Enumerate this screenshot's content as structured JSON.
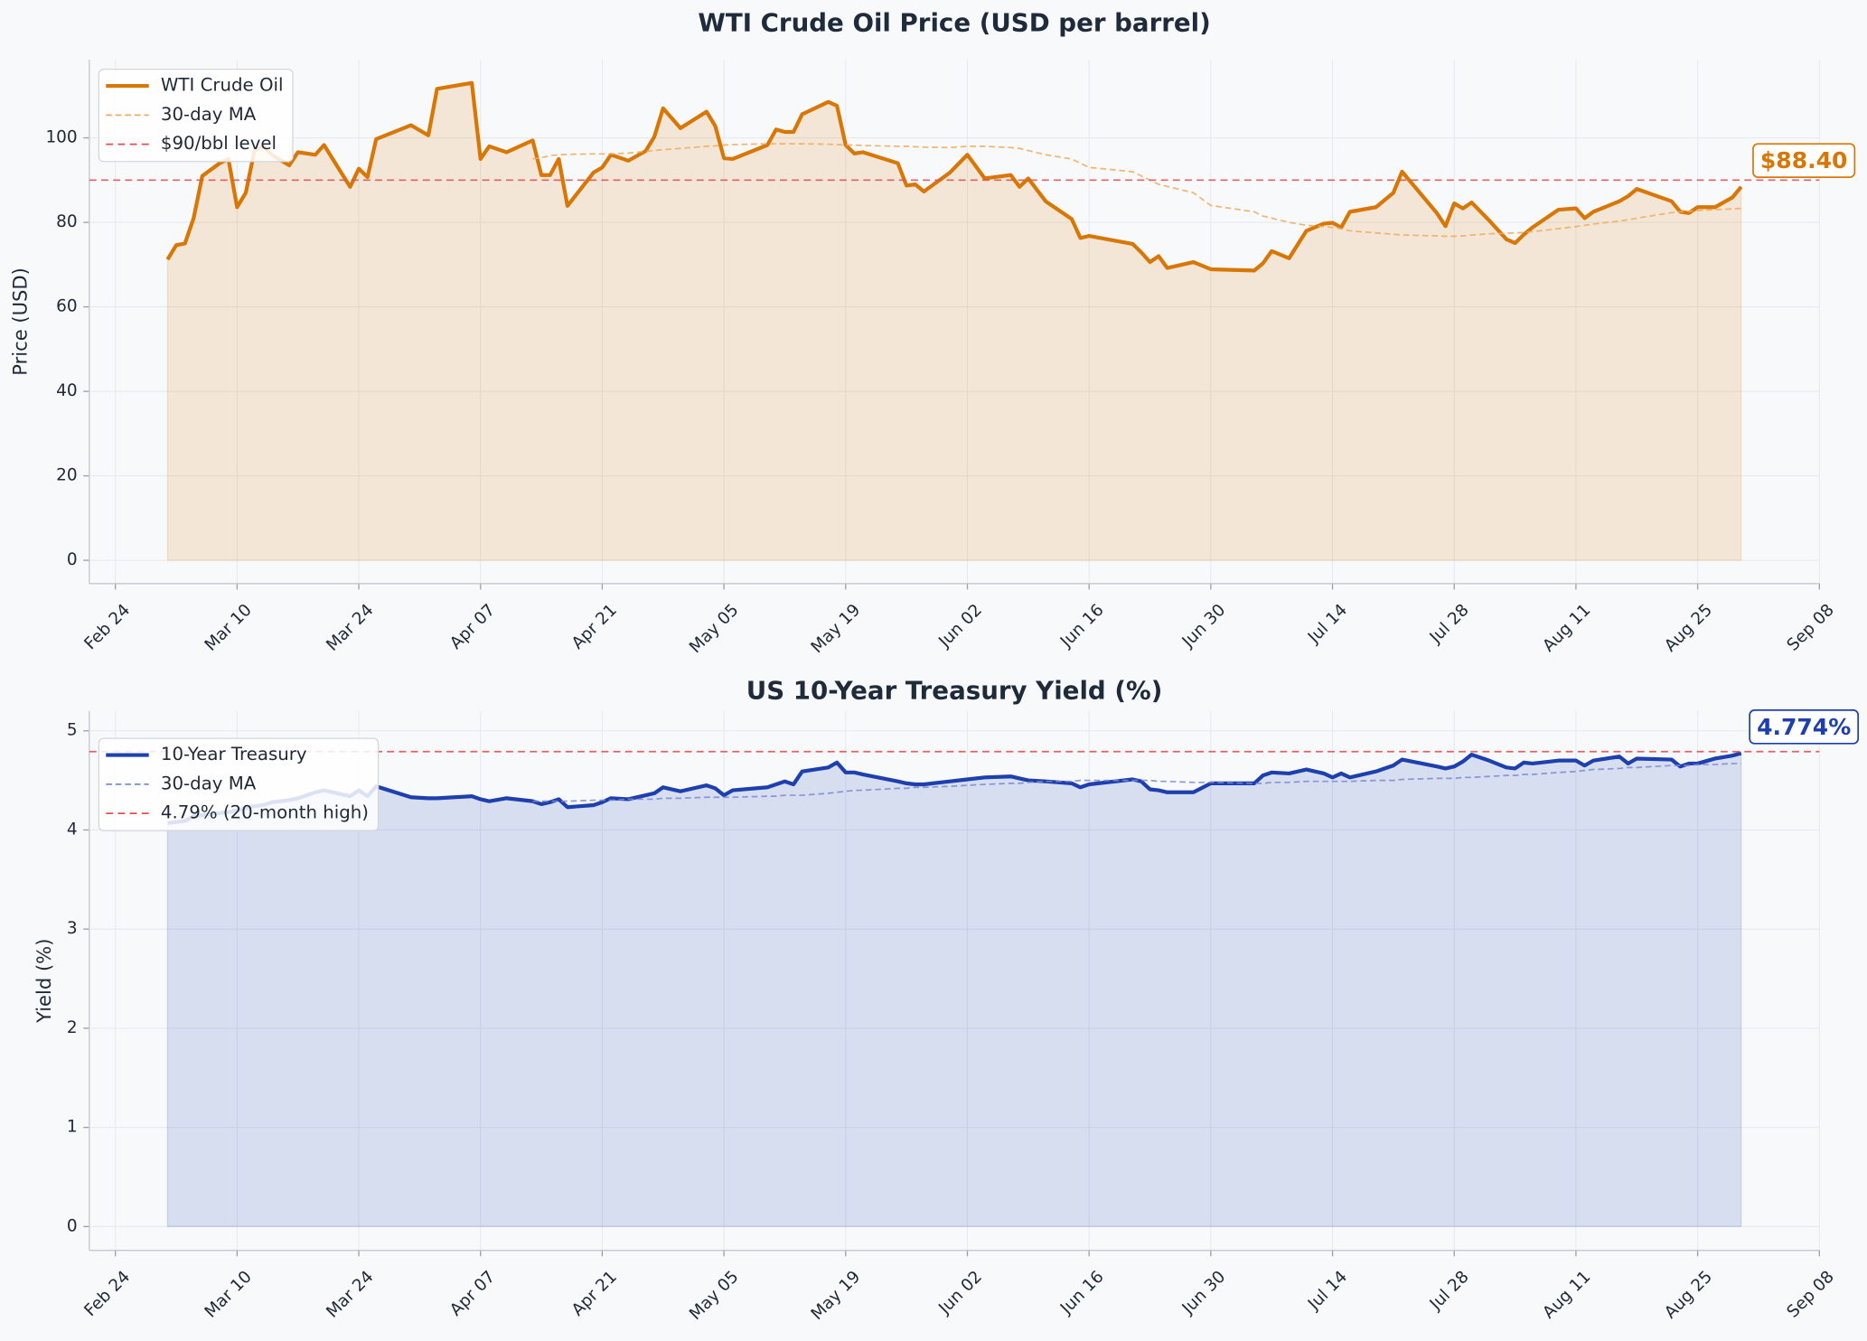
{
  "chart_data": [
    {
      "type": "line",
      "title": "WTI Crude Oil Price (USD per barrel)",
      "ylabel": "Price (USD)",
      "x": [
        "Mar 02",
        "Mar 03",
        "Mar 04",
        "Mar 05",
        "Mar 06",
        "Mar 08",
        "Mar 09",
        "Mar 10",
        "Mar 11",
        "Mar 12",
        "Mar 13",
        "Mar 14",
        "Mar 16",
        "Mar 17",
        "Mar 19",
        "Mar 20",
        "Mar 23",
        "Mar 24",
        "Mar 25",
        "Mar 26",
        "Mar 30",
        "Apr 01",
        "Apr 02",
        "Apr 06",
        "Apr 07",
        "Apr 08",
        "Apr 10",
        "Apr 13",
        "Apr 14",
        "Apr 15",
        "Apr 16",
        "Apr 17",
        "Apr 20",
        "Apr 21",
        "Apr 22",
        "Apr 24",
        "Apr 26",
        "Apr 27",
        "Apr 28",
        "Apr 30",
        "May 03",
        "May 04",
        "May 05",
        "May 06",
        "May 10",
        "May 11",
        "May 12",
        "May 13",
        "May 14",
        "May 17",
        "May 18",
        "May 19",
        "May 20",
        "May 21",
        "May 25",
        "May 26",
        "May 27",
        "May 28",
        "May 31",
        "Jun 02",
        "Jun 04",
        "Jun 07",
        "Jun 08",
        "Jun 09",
        "Jun 11",
        "Jun 14",
        "Jun 15",
        "Jun 16",
        "Jun 21",
        "Jun 22",
        "Jun 23",
        "Jun 24",
        "Jun 25",
        "Jun 28",
        "Jun 30",
        "Jul 05",
        "Jul 06",
        "Jul 07",
        "Jul 09",
        "Jul 11",
        "Jul 13",
        "Jul 14",
        "Jul 15",
        "Jul 16",
        "Jul 19",
        "Jul 21",
        "Jul 22",
        "Jul 26",
        "Jul 27",
        "Jul 28",
        "Jul 29",
        "Jul 30",
        "Aug 01",
        "Aug 03",
        "Aug 04",
        "Aug 05",
        "Aug 06",
        "Aug 09",
        "Aug 11",
        "Aug 12",
        "Aug 13",
        "Aug 16",
        "Aug 17",
        "Aug 18",
        "Aug 22",
        "Aug 23",
        "Aug 24",
        "Aug 25",
        "Aug 27",
        "Aug 29",
        "Aug 30"
      ],
      "series": [
        {
          "name": "WTI Crude Oil",
          "color": "#d97706",
          "fill": true,
          "values": [
            71.2,
            74.6,
            75.0,
            81.0,
            91.0,
            94.0,
            95.0,
            83.6,
            87.0,
            97.0,
            98.0,
            96.0,
            93.5,
            96.6,
            96.0,
            98.3,
            88.4,
            92.7,
            90.7,
            99.7,
            103.0,
            100.6,
            111.6,
            113.0,
            95.0,
            98.0,
            96.6,
            99.4,
            91.2,
            91.2,
            95.0,
            83.9,
            91.8,
            93.0,
            96.0,
            94.6,
            96.9,
            100.3,
            107.0,
            102.3,
            106.2,
            102.8,
            95.2,
            95.0,
            98.3,
            102.0,
            101.4,
            101.4,
            105.6,
            108.5,
            107.6,
            98.3,
            96.3,
            96.6,
            94.0,
            88.7,
            89.0,
            87.3,
            91.8,
            96.0,
            90.4,
            91.2,
            88.4,
            90.4,
            85.0,
            80.8,
            76.3,
            76.8,
            74.9,
            72.9,
            70.6,
            72.0,
            69.2,
            70.6,
            68.9,
            68.6,
            70.3,
            73.2,
            71.5,
            78.0,
            79.7,
            79.9,
            78.8,
            82.5,
            83.6,
            87.0,
            92.0,
            82.2,
            79.1,
            84.5,
            83.3,
            84.7,
            80.5,
            76.0,
            75.1,
            77.1,
            78.8,
            83.0,
            83.3,
            81.0,
            82.5,
            85.0,
            86.2,
            87.9,
            85.0,
            82.5,
            82.2,
            83.6,
            83.6,
            85.9,
            88.4
          ]
        },
        {
          "name": "30-day MA",
          "color": "#f0a95a",
          "dashed": true,
          "values": [
            null,
            null,
            null,
            null,
            null,
            null,
            null,
            null,
            null,
            null,
            null,
            null,
            null,
            null,
            null,
            null,
            null,
            null,
            null,
            null,
            null,
            null,
            null,
            null,
            null,
            null,
            null,
            95.0,
            95.3,
            95.8,
            96.0,
            96.1,
            96.2,
            96.2,
            96.2,
            96.4,
            96.8,
            97.0,
            97.2,
            97.5,
            98.0,
            98.1,
            98.3,
            98.4,
            98.6,
            98.6,
            98.6,
            98.6,
            98.6,
            98.5,
            98.4,
            98.3,
            98.3,
            98.2,
            98.0,
            98.0,
            97.9,
            97.8,
            97.7,
            98.0,
            98.0,
            97.7,
            97.5,
            97.0,
            96.0,
            95.0,
            94.0,
            93.0,
            92.0,
            91.0,
            90.0,
            89.0,
            88.5,
            87.0,
            84.0,
            82.5,
            81.5,
            81.0,
            80.0,
            79.3,
            79.0,
            78.8,
            78.5,
            78.0,
            77.5,
            77.2,
            77.0,
            76.8,
            76.7,
            76.7,
            76.8,
            77.0,
            77.3,
            77.4,
            77.5,
            77.6,
            77.8,
            78.5,
            79.0,
            79.3,
            79.6,
            80.3,
            80.6,
            81.0,
            82.3,
            82.5,
            82.6,
            82.8,
            83.0,
            83.2,
            83.3
          ]
        }
      ],
      "hlines": [
        {
          "name": "$90/bbl level",
          "value": 90,
          "color": "#e05252"
        }
      ],
      "end_label": {
        "value": 88.4,
        "label": "$88.40"
      },
      "xlim": [
        "Feb 21",
        "Sep 08"
      ],
      "xticks": [
        "Feb 24",
        "Mar 10",
        "Mar 24",
        "Apr 07",
        "Apr 21",
        "May 05",
        "May 19",
        "Jun 02",
        "Jun 16",
        "Jun 30",
        "Jul 14",
        "Jul 28",
        "Aug 11",
        "Aug 25",
        "Sep 08"
      ],
      "ylim": [
        -5.5,
        118.5
      ],
      "yticks": [
        0,
        20,
        40,
        60,
        80,
        100
      ],
      "grid": true,
      "legend": "upper-left"
    },
    {
      "type": "line",
      "title": "US 10-Year Treasury Yield (%)",
      "ylabel": "Yield (%)",
      "x": [
        "Mar 02",
        "Mar 03",
        "Mar 04",
        "Mar 05",
        "Mar 06",
        "Mar 08",
        "Mar 09",
        "Mar 10",
        "Mar 11",
        "Mar 12",
        "Mar 13",
        "Mar 14",
        "Mar 16",
        "Mar 17",
        "Mar 19",
        "Mar 20",
        "Mar 23",
        "Mar 24",
        "Mar 25",
        "Mar 26",
        "Mar 30",
        "Apr 01",
        "Apr 02",
        "Apr 06",
        "Apr 07",
        "Apr 08",
        "Apr 10",
        "Apr 13",
        "Apr 14",
        "Apr 15",
        "Apr 16",
        "Apr 17",
        "Apr 20",
        "Apr 21",
        "Apr 22",
        "Apr 24",
        "Apr 26",
        "Apr 27",
        "Apr 28",
        "Apr 30",
        "May 03",
        "May 04",
        "May 05",
        "May 06",
        "May 10",
        "May 11",
        "May 12",
        "May 13",
        "May 14",
        "May 17",
        "May 18",
        "May 19",
        "May 20",
        "May 21",
        "May 25",
        "May 26",
        "May 27",
        "May 28",
        "May 31",
        "Jun 02",
        "Jun 04",
        "Jun 07",
        "Jun 08",
        "Jun 09",
        "Jun 11",
        "Jun 14",
        "Jun 15",
        "Jun 16",
        "Jun 21",
        "Jun 22",
        "Jun 23",
        "Jun 24",
        "Jun 25",
        "Jun 28",
        "Jun 30",
        "Jul 05",
        "Jul 06",
        "Jul 07",
        "Jul 09",
        "Jul 11",
        "Jul 13",
        "Jul 14",
        "Jul 15",
        "Jul 16",
        "Jul 19",
        "Jul 21",
        "Jul 22",
        "Jul 26",
        "Jul 27",
        "Jul 28",
        "Jul 29",
        "Jul 30",
        "Aug 01",
        "Aug 03",
        "Aug 04",
        "Aug 05",
        "Aug 06",
        "Aug 09",
        "Aug 11",
        "Aug 12",
        "Aug 13",
        "Aug 16",
        "Aug 17",
        "Aug 18",
        "Aug 22",
        "Aug 23",
        "Aug 24",
        "Aug 25",
        "Aug 27",
        "Aug 29",
        "Aug 30"
      ],
      "series": [
        {
          "name": "10-Year Treasury",
          "color": "#1e40af",
          "fill": true,
          "values": [
            4.07,
            4.08,
            4.09,
            4.14,
            4.15,
            4.17,
            4.18,
            4.2,
            4.22,
            4.24,
            4.25,
            4.28,
            4.3,
            4.32,
            4.38,
            4.4,
            4.34,
            4.4,
            4.34,
            4.44,
            4.33,
            4.32,
            4.32,
            4.34,
            4.31,
            4.29,
            4.32,
            4.29,
            4.26,
            4.28,
            4.31,
            4.23,
            4.25,
            4.28,
            4.32,
            4.31,
            4.35,
            4.37,
            4.43,
            4.39,
            4.45,
            4.42,
            4.35,
            4.4,
            4.43,
            4.46,
            4.49,
            4.46,
            4.59,
            4.63,
            4.68,
            4.58,
            4.58,
            4.56,
            4.49,
            4.47,
            4.46,
            4.46,
            4.49,
            4.51,
            4.53,
            4.54,
            4.52,
            4.5,
            4.49,
            4.47,
            4.43,
            4.46,
            4.51,
            4.49,
            4.41,
            4.4,
            4.38,
            4.38,
            4.47,
            4.47,
            4.55,
            4.58,
            4.57,
            4.61,
            4.57,
            4.53,
            4.57,
            4.53,
            4.59,
            4.65,
            4.71,
            4.64,
            4.62,
            4.64,
            4.69,
            4.76,
            4.7,
            4.63,
            4.62,
            4.68,
            4.67,
            4.7,
            4.7,
            4.65,
            4.7,
            4.74,
            4.67,
            4.72,
            4.71,
            4.64,
            4.67,
            4.67,
            4.72,
            4.75,
            4.774
          ]
        },
        {
          "name": "30-day MA",
          "color": "#7b8ad1",
          "dashed": true,
          "values": [
            null,
            null,
            null,
            null,
            null,
            null,
            null,
            null,
            null,
            null,
            null,
            null,
            null,
            null,
            null,
            null,
            null,
            null,
            null,
            null,
            null,
            null,
            null,
            null,
            null,
            null,
            null,
            4.29,
            4.29,
            4.29,
            4.29,
            4.29,
            4.3,
            4.3,
            4.3,
            4.31,
            4.31,
            4.31,
            4.32,
            4.32,
            4.33,
            4.33,
            4.33,
            4.33,
            4.34,
            4.34,
            4.35,
            4.35,
            4.35,
            4.37,
            4.38,
            4.39,
            4.4,
            4.4,
            4.42,
            4.42,
            4.43,
            4.43,
            4.44,
            4.45,
            4.46,
            4.47,
            4.47,
            4.48,
            4.49,
            4.49,
            4.5,
            4.5,
            4.5,
            4.5,
            4.5,
            4.49,
            4.49,
            4.48,
            4.48,
            4.47,
            4.47,
            4.48,
            4.48,
            4.49,
            4.49,
            4.49,
            4.49,
            4.49,
            4.5,
            4.5,
            4.51,
            4.52,
            4.52,
            4.52,
            4.53,
            4.53,
            4.54,
            4.55,
            4.55,
            4.56,
            4.56,
            4.58,
            4.59,
            4.6,
            4.61,
            4.62,
            4.63,
            4.63,
            4.65,
            4.65,
            4.65,
            4.66,
            4.66,
            4.67,
            4.67
          ]
        }
      ],
      "hlines": [
        {
          "name": "4.79% (20-month high)",
          "value": 4.79,
          "color": "#e05252"
        }
      ],
      "end_label": {
        "value": 4.774,
        "label": "4.774%"
      },
      "xlim": [
        "Feb 21",
        "Sep 08"
      ],
      "xticks": [
        "Feb 24",
        "Mar 10",
        "Mar 24",
        "Apr 07",
        "Apr 21",
        "May 05",
        "May 19",
        "Jun 02",
        "Jun 16",
        "Jun 30",
        "Jul 14",
        "Jul 28",
        "Aug 11",
        "Aug 25",
        "Sep 08"
      ],
      "ylim": [
        -0.24,
        5.2
      ],
      "yticks": [
        0,
        1,
        2,
        3,
        4,
        5
      ],
      "grid": true,
      "legend": "upper-left"
    }
  ]
}
